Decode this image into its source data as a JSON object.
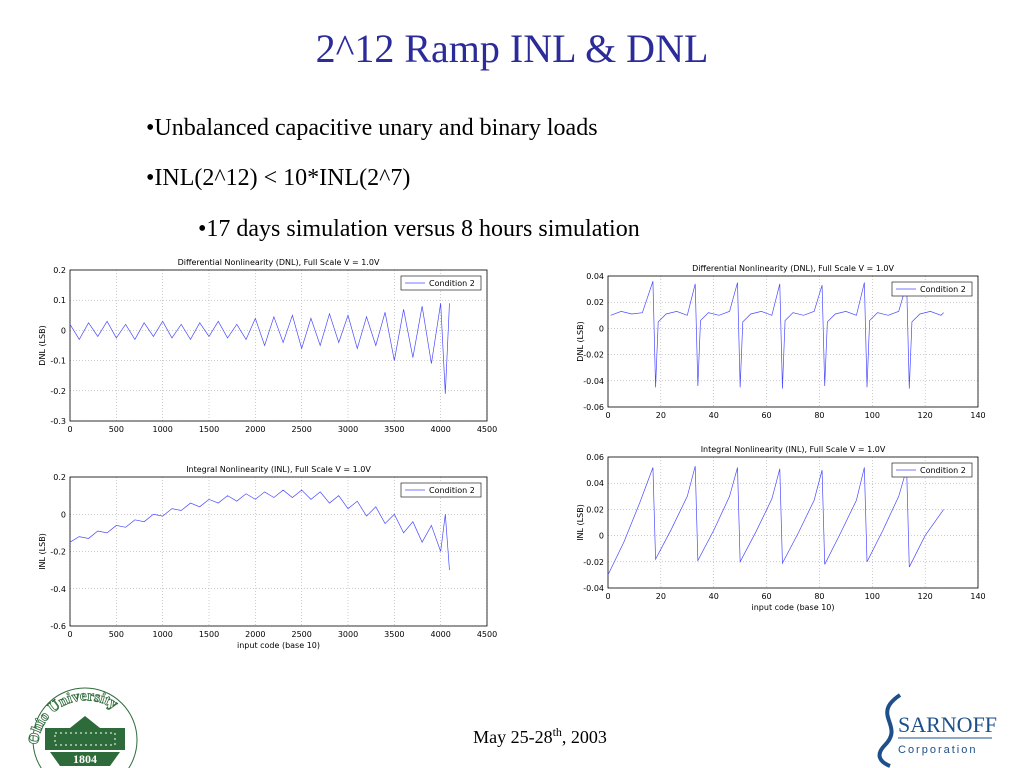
{
  "title": "2^12 Ramp INL & DNL",
  "bullets": [
    "•Unbalanced capacitive unary and binary loads",
    "•INL(2^12) < 10*INL(2^7)",
    "•17 days simulation versus 8 hours simulation"
  ],
  "footer": {
    "date_main": "May 25-28",
    "date_sup": "th",
    "date_end": ", 2003"
  },
  "logos": {
    "ohio_name": "Ohio University",
    "ohio_year": "1804",
    "sarnoff_name": "SARNOFF",
    "sarnoff_sub": "Corporation"
  },
  "chart_data": [
    {
      "type": "line",
      "title": "Differential Nonlinearity (DNL), Full Scale V = 1.0V",
      "y_label": "DNL (LSB)",
      "x": [
        0,
        100,
        200,
        300,
        400,
        500,
        600,
        700,
        800,
        900,
        1000,
        1100,
        1200,
        1300,
        1400,
        1500,
        1600,
        1700,
        1800,
        1900,
        2000,
        2100,
        2200,
        2300,
        2400,
        2500,
        2600,
        2700,
        2800,
        2900,
        3000,
        3100,
        3200,
        3300,
        3400,
        3500,
        3600,
        3700,
        3800,
        3900,
        4000,
        4050,
        4095
      ],
      "series": [
        {
          "name": "Condition 2",
          "color": "#4a4aff",
          "values": [
            0.02,
            -0.03,
            0.025,
            -0.02,
            0.03,
            -0.025,
            0.02,
            -0.03,
            0.025,
            -0.02,
            0.03,
            -0.025,
            0.02,
            -0.03,
            0.025,
            -0.02,
            0.03,
            -0.025,
            0.02,
            -0.03,
            0.04,
            -0.05,
            0.045,
            -0.04,
            0.05,
            -0.06,
            0.04,
            -0.05,
            0.055,
            -0.04,
            0.05,
            -0.06,
            0.045,
            -0.05,
            0.06,
            -0.1,
            0.07,
            -0.09,
            0.08,
            -0.11,
            0.09,
            -0.21,
            0.09
          ]
        }
      ],
      "xlim": [
        0,
        4500
      ],
      "xticks": [
        0,
        500,
        1000,
        1500,
        2000,
        2500,
        3000,
        3500,
        4000,
        4500
      ],
      "ylim": [
        -0.3,
        0.2
      ],
      "yticks": [
        -0.3,
        -0.2,
        -0.1,
        0,
        0.1,
        0.2
      ],
      "grid": true,
      "legend": "upper-right"
    },
    {
      "type": "line",
      "title": "Integral Nonlinearity (INL), Full Scale V = 1.0V",
      "y_label": "INL (LSB)",
      "x_label": "input code (base 10)",
      "x": [
        0,
        100,
        200,
        300,
        400,
        500,
        600,
        700,
        800,
        900,
        1000,
        1100,
        1200,
        1300,
        1400,
        1500,
        1600,
        1700,
        1800,
        1900,
        2000,
        2100,
        2200,
        2300,
        2400,
        2500,
        2600,
        2700,
        2800,
        2900,
        3000,
        3100,
        3200,
        3300,
        3400,
        3500,
        3600,
        3700,
        3800,
        3900,
        4000,
        4050,
        4095
      ],
      "series": [
        {
          "name": "Condition 2",
          "color": "#4a4aff",
          "values": [
            -0.15,
            -0.12,
            -0.13,
            -0.09,
            -0.1,
            -0.06,
            -0.07,
            -0.03,
            -0.04,
            0.0,
            -0.01,
            0.03,
            0.02,
            0.06,
            0.04,
            0.08,
            0.06,
            0.1,
            0.07,
            0.11,
            0.08,
            0.12,
            0.09,
            0.13,
            0.09,
            0.13,
            0.08,
            0.12,
            0.06,
            0.1,
            0.03,
            0.07,
            -0.01,
            0.04,
            -0.05,
            0.0,
            -0.1,
            -0.04,
            -0.15,
            -0.06,
            -0.2,
            0.0,
            -0.3
          ]
        }
      ],
      "xlim": [
        0,
        4500
      ],
      "xticks": [
        0,
        500,
        1000,
        1500,
        2000,
        2500,
        3000,
        3500,
        4000,
        4500
      ],
      "ylim": [
        -0.6,
        0.2
      ],
      "yticks": [
        -0.6,
        -0.4,
        -0.2,
        0,
        0.2
      ],
      "grid": true,
      "legend": "upper-right"
    },
    {
      "type": "line",
      "title": "Differential Nonlinearity (DNL), Full Scale V = 1.0V",
      "y_label": "DNL (LSB)",
      "x": [
        1,
        5,
        9,
        13,
        17,
        18,
        19,
        22,
        26,
        30,
        33,
        34,
        35,
        38,
        42,
        46,
        49,
        50,
        51,
        54,
        58,
        62,
        65,
        66,
        67,
        70,
        74,
        78,
        81,
        82,
        83,
        86,
        90,
        94,
        97,
        98,
        99,
        102,
        106,
        110,
        113,
        114,
        115,
        118,
        122,
        126,
        127
      ],
      "series": [
        {
          "name": "Condition 2",
          "color": "#4a4aff",
          "values": [
            0.01,
            0.013,
            0.011,
            0.012,
            0.036,
            -0.045,
            0.005,
            0.011,
            0.013,
            0.01,
            0.034,
            -0.044,
            0.006,
            0.012,
            0.01,
            0.013,
            0.035,
            -0.045,
            0.005,
            0.011,
            0.013,
            0.01,
            0.034,
            -0.046,
            0.006,
            0.012,
            0.01,
            0.013,
            0.033,
            -0.044,
            0.005,
            0.011,
            0.013,
            0.01,
            0.035,
            -0.045,
            0.006,
            0.012,
            0.01,
            0.013,
            0.034,
            -0.046,
            0.005,
            0.011,
            0.013,
            0.01,
            0.012
          ]
        }
      ],
      "xlim": [
        0,
        140
      ],
      "xticks": [
        0,
        20,
        40,
        60,
        80,
        100,
        120,
        140
      ],
      "ylim": [
        -0.06,
        0.04
      ],
      "yticks": [
        -0.06,
        -0.04,
        -0.02,
        0,
        0.02,
        0.04
      ],
      "grid": true,
      "legend": "upper-right"
    },
    {
      "type": "line",
      "title": "Integral Nonlinearity (INL), Full Scale V = 1.0V",
      "y_label": "INL (LSB)",
      "x_label": "input code (base 10)",
      "x": [
        0,
        6,
        12,
        17,
        18,
        24,
        30,
        33,
        34,
        40,
        46,
        49,
        50,
        56,
        62,
        65,
        66,
        72,
        78,
        81,
        82,
        88,
        94,
        97,
        98,
        104,
        110,
        113,
        114,
        120,
        127
      ],
      "series": [
        {
          "name": "Condition 2",
          "color": "#4a4aff",
          "values": [
            -0.03,
            -0.005,
            0.025,
            0.052,
            -0.018,
            0.005,
            0.03,
            0.053,
            -0.019,
            0.004,
            0.03,
            0.052,
            -0.02,
            0.003,
            0.028,
            0.051,
            -0.021,
            0.002,
            0.027,
            0.05,
            -0.022,
            0.002,
            0.027,
            0.052,
            -0.02,
            0.004,
            0.03,
            0.051,
            -0.024,
            0.0,
            0.02
          ]
        }
      ],
      "xlim": [
        0,
        140
      ],
      "xticks": [
        0,
        20,
        40,
        60,
        80,
        100,
        120,
        140
      ],
      "ylim": [
        -0.04,
        0.06
      ],
      "yticks": [
        -0.04,
        -0.02,
        0,
        0.02,
        0.04,
        0.06
      ],
      "grid": true,
      "legend": "upper-right"
    }
  ]
}
